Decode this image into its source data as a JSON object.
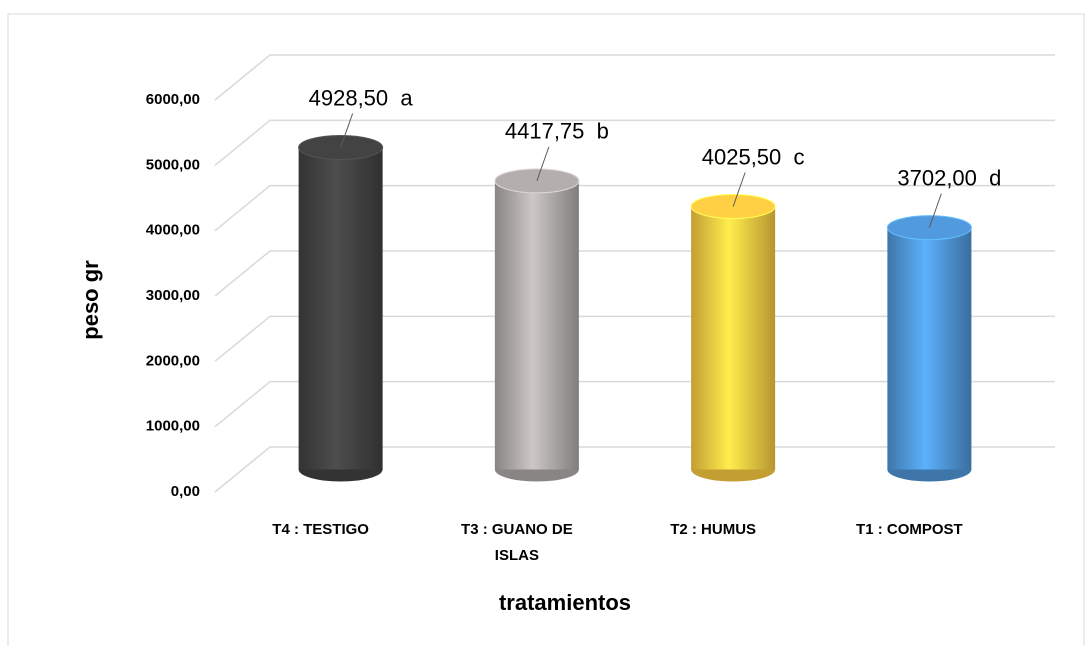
{
  "chart_data": {
    "type": "bar3d",
    "categories": [
      "T4 : TESTIGO",
      "T3 : GUANO DE ISLAS",
      "T2 : HUMUS",
      "T1 : COMPOST"
    ],
    "values": [
      4928.5,
      4417.75,
      4025.5,
      3702
    ],
    "value_labels": [
      "4928,50  a",
      "4417,75  b",
      "4025,50  c",
      "3702,00  d"
    ],
    "colors": [
      "#404040",
      "#aba6a6",
      "#f3c640",
      "#4d93d3"
    ],
    "y_axis_label": "peso gr",
    "x_axis_label": "tratamientos",
    "ylim": [
      0,
      6000
    ],
    "yticks": [
      {
        "value": 0,
        "label": "0,00"
      },
      {
        "value": 1000,
        "label": "1000,00"
      },
      {
        "value": 2000,
        "label": "2000,00"
      },
      {
        "value": 3000,
        "label": "3000,00"
      },
      {
        "value": 4000,
        "label": "4000,00"
      },
      {
        "value": 5000,
        "label": "5000,00"
      },
      {
        "value": 6000,
        "label": "6000,00"
      }
    ],
    "grid": true
  }
}
